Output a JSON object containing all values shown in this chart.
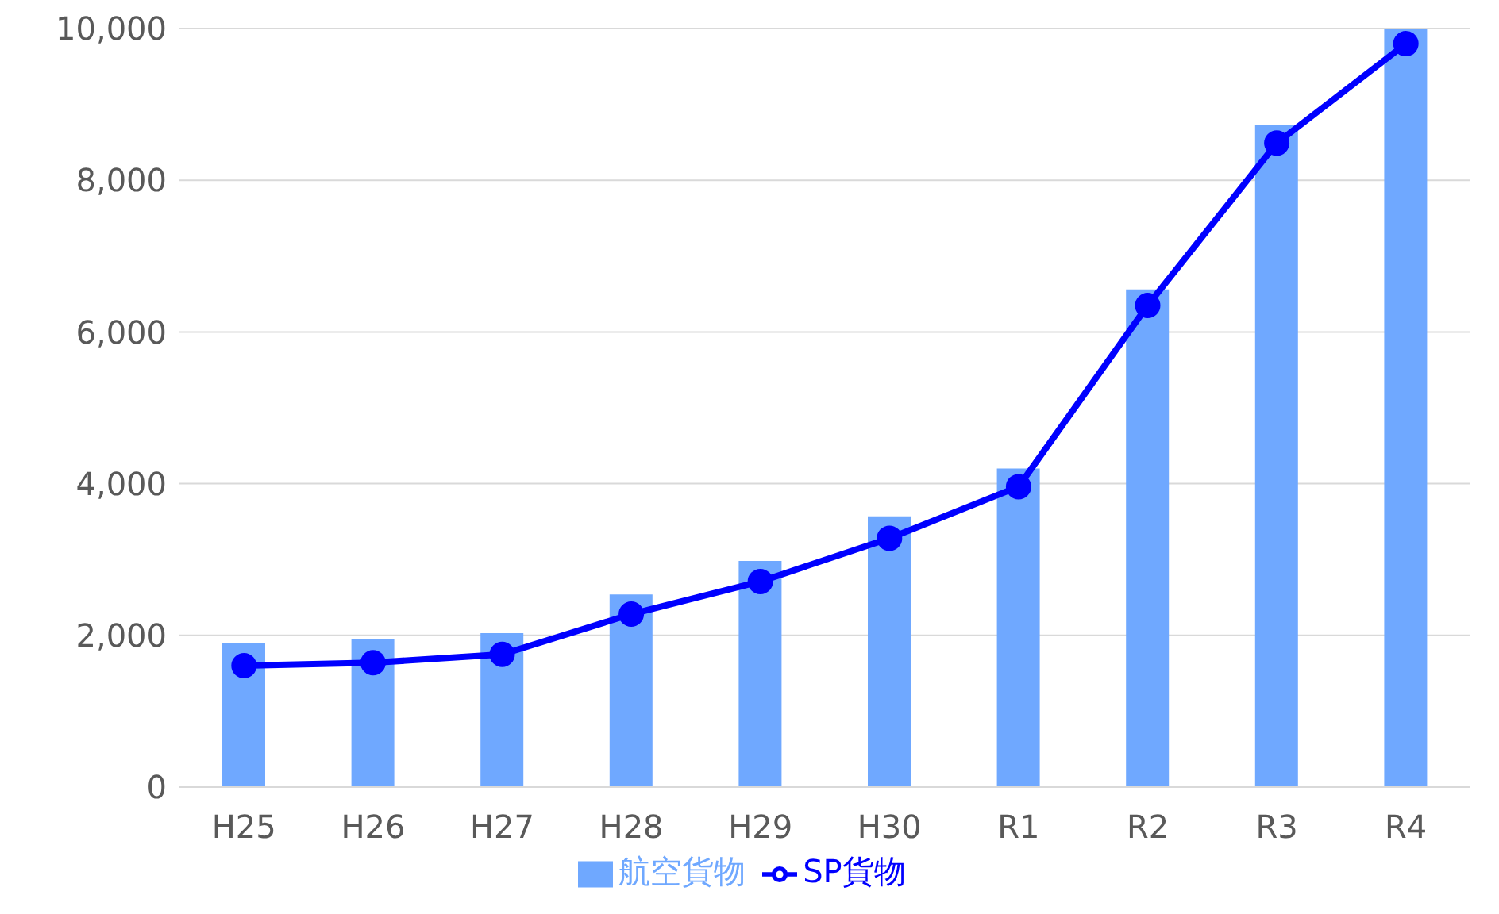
{
  "chart_data": {
    "type": "bar",
    "categories": [
      "H25",
      "H26",
      "H27",
      "H28",
      "H29",
      "H30",
      "R1",
      "R2",
      "R3",
      "R4"
    ],
    "series": [
      {
        "name": "航空貨物",
        "color": "#6fa8ff",
        "values": [
          1900,
          1950,
          2030,
          2540,
          2980,
          3570,
          4200,
          6560,
          8730,
          10000
        ]
      },
      {
        "name": "SP貨物",
        "type": "line",
        "color": "#0000ff",
        "values": [
          1600,
          1640,
          1750,
          2280,
          2710,
          3280,
          3960,
          6350,
          8490,
          9800
        ]
      }
    ],
    "ylim": [
      0,
      10000
    ],
    "yticks": [
      0,
      {
        "value": 2000,
        "label": "2,000"
      },
      {
        "value": 4000,
        "label": "4,000"
      },
      {
        "value": 6000,
        "label": "6,000"
      },
      {
        "value": 8000,
        "label": "8,000"
      },
      {
        "value": 10000,
        "label": "10,000"
      }
    ],
    "grid": "y",
    "legend": "bottom",
    "marker": "circle",
    "line_style": "solid"
  }
}
